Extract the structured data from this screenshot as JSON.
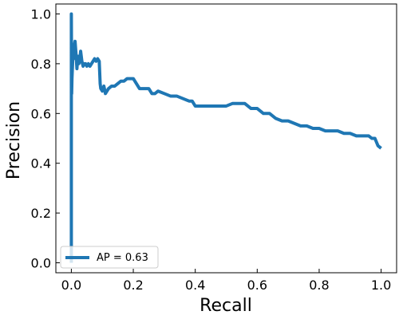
{
  "chart_data": {
    "type": "line",
    "xlabel": "Recall",
    "ylabel": "Precision",
    "xlim": [
      -0.05,
      1.05
    ],
    "ylim": [
      -0.04,
      1.04
    ],
    "xticks": [
      0.0,
      0.2,
      0.4,
      0.6,
      0.8,
      1.0
    ],
    "yticks": [
      0.0,
      0.2,
      0.4,
      0.6,
      0.8,
      1.0
    ],
    "xtick_labels": [
      "0.0",
      "0.2",
      "0.4",
      "0.6",
      "0.8",
      "1.0"
    ],
    "ytick_labels": [
      "0.0",
      "0.2",
      "0.4",
      "0.6",
      "0.8",
      "1.0"
    ],
    "grid": false,
    "legend": {
      "position": "lower-left",
      "entries": [
        "AP = 0.63"
      ]
    },
    "series": [
      {
        "name": "AP = 0.63",
        "color": "#1f77b4",
        "x": [
          0.0,
          0.0,
          0.0,
          0.001,
          0.002,
          0.003,
          0.004,
          0.005,
          0.007,
          0.009,
          0.012,
          0.015,
          0.018,
          0.021,
          0.024,
          0.027,
          0.03,
          0.034,
          0.038,
          0.042,
          0.046,
          0.05,
          0.055,
          0.06,
          0.065,
          0.07,
          0.075,
          0.08,
          0.085,
          0.09,
          0.093,
          0.095,
          0.1,
          0.105,
          0.11,
          0.12,
          0.13,
          0.14,
          0.15,
          0.16,
          0.17,
          0.18,
          0.19,
          0.2,
          0.21,
          0.22,
          0.23,
          0.24,
          0.25,
          0.26,
          0.27,
          0.28,
          0.3,
          0.32,
          0.34,
          0.36,
          0.38,
          0.39,
          0.4,
          0.42,
          0.44,
          0.46,
          0.48,
          0.5,
          0.52,
          0.54,
          0.56,
          0.58,
          0.59,
          0.6,
          0.62,
          0.64,
          0.66,
          0.68,
          0.7,
          0.72,
          0.74,
          0.76,
          0.78,
          0.8,
          0.82,
          0.84,
          0.86,
          0.88,
          0.9,
          0.92,
          0.94,
          0.96,
          0.97,
          0.98,
          0.99,
          1.0
        ],
        "y": [
          0.0,
          0.5,
          1.0,
          0.68,
          0.74,
          0.77,
          0.8,
          0.85,
          0.82,
          0.87,
          0.89,
          0.84,
          0.78,
          0.83,
          0.8,
          0.81,
          0.85,
          0.81,
          0.79,
          0.8,
          0.8,
          0.79,
          0.8,
          0.79,
          0.8,
          0.81,
          0.82,
          0.81,
          0.82,
          0.81,
          0.72,
          0.7,
          0.69,
          0.71,
          0.68,
          0.7,
          0.71,
          0.71,
          0.72,
          0.73,
          0.73,
          0.74,
          0.74,
          0.74,
          0.72,
          0.7,
          0.7,
          0.7,
          0.7,
          0.68,
          0.68,
          0.69,
          0.68,
          0.67,
          0.67,
          0.66,
          0.65,
          0.65,
          0.63,
          0.63,
          0.63,
          0.63,
          0.63,
          0.63,
          0.64,
          0.64,
          0.64,
          0.62,
          0.62,
          0.62,
          0.6,
          0.6,
          0.58,
          0.57,
          0.57,
          0.56,
          0.55,
          0.55,
          0.54,
          0.54,
          0.53,
          0.53,
          0.53,
          0.52,
          0.52,
          0.51,
          0.51,
          0.51,
          0.5,
          0.5,
          0.47,
          0.46
        ]
      }
    ]
  }
}
